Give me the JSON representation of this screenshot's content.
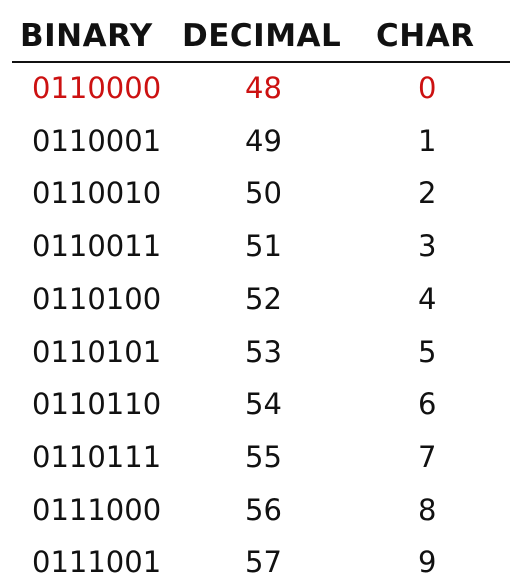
{
  "table": {
    "headers": {
      "binary": "BINARY",
      "decimal": "DECIMAL",
      "char": "CHAR"
    },
    "highlight_color": "#cc1111",
    "text_color": "#111111",
    "rows": [
      {
        "binary": "0110000",
        "decimal": "48",
        "char": "0",
        "highlighted": true
      },
      {
        "binary": "0110001",
        "decimal": "49",
        "char": "1",
        "highlighted": false
      },
      {
        "binary": "0110010",
        "decimal": "50",
        "char": "2",
        "highlighted": false
      },
      {
        "binary": "0110011",
        "decimal": "51",
        "char": "3",
        "highlighted": false
      },
      {
        "binary": "0110100",
        "decimal": "52",
        "char": "4",
        "highlighted": false
      },
      {
        "binary": "0110101",
        "decimal": "53",
        "char": "5",
        "highlighted": false
      },
      {
        "binary": "0110110",
        "decimal": "54",
        "char": "6",
        "highlighted": false
      },
      {
        "binary": "0110111",
        "decimal": "55",
        "char": "7",
        "highlighted": false
      },
      {
        "binary": "0111000",
        "decimal": "56",
        "char": "8",
        "highlighted": false
      },
      {
        "binary": "0111001",
        "decimal": "57",
        "char": "9",
        "highlighted": false
      }
    ]
  }
}
